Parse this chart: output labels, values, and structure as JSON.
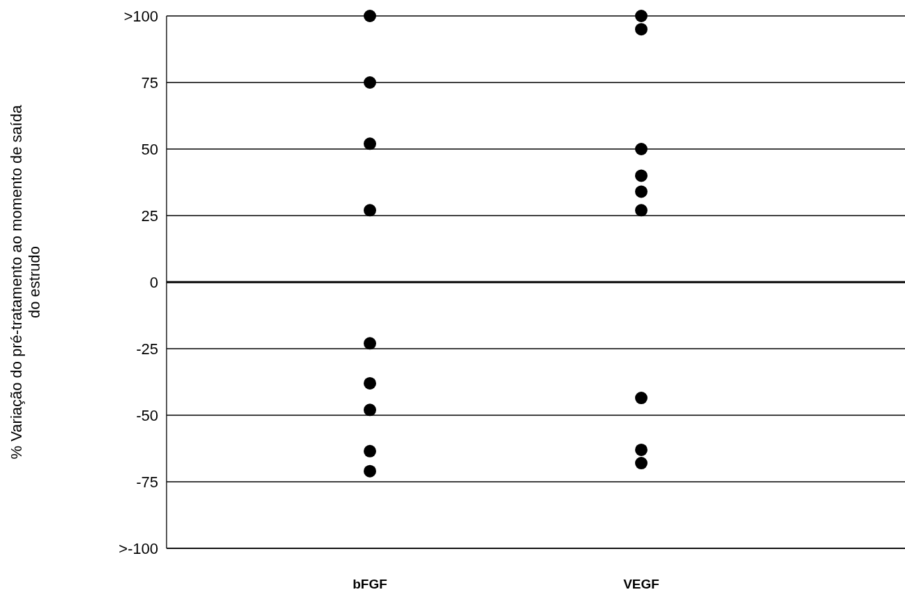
{
  "chart_data": {
    "type": "scatter",
    "ylabel": "% Variação do pré-tratamento ao momento de saída do estrudo",
    "categories": [
      "bFGF",
      "VEGF"
    ],
    "series": [
      {
        "color": "#000000",
        "x": [
          "bFGF",
          "bFGF",
          "bFGF",
          "bFGF",
          "bFGF",
          "bFGF",
          "bFGF",
          "bFGF",
          "bFGF"
        ],
        "values": [
          100,
          75,
          52,
          27,
          -23,
          -38,
          -48,
          -63.5,
          -71
        ]
      },
      {
        "color": "#000000",
        "x": [
          "VEGF",
          "VEGF",
          "VEGF",
          "VEGF",
          "VEGF",
          "VEGF",
          "VEGF",
          "VEGF",
          "VEGF"
        ],
        "values": [
          100,
          95,
          50,
          40,
          34,
          27,
          -43.5,
          -63,
          -68
        ]
      }
    ],
    "ylim": [
      -100,
      100
    ],
    "yticks": [
      {
        "value": 100,
        "label": ">100"
      },
      75,
      50,
      25,
      0,
      -25,
      -50,
      -75,
      {
        "value": -100,
        "label": ">-100"
      }
    ],
    "grid": "y",
    "marker": "circle",
    "ref_lines": [
      {
        "axis": "y",
        "value": 0
      }
    ]
  }
}
